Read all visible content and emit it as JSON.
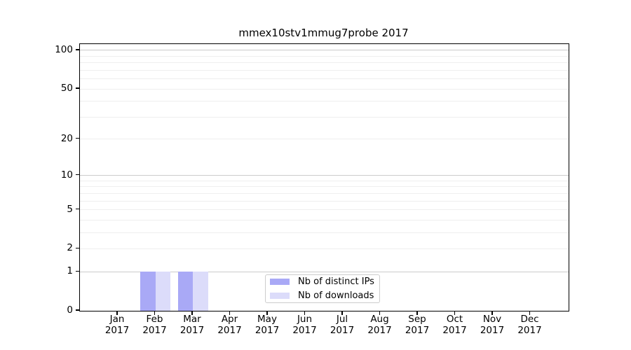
{
  "figure": {
    "background": "#ffffff"
  },
  "colors": {
    "bar_distinct_ips": "#a9a9f6",
    "bar_downloads": "#dcdcfa",
    "grid_major": "#cbcbcb",
    "grid_minor": "#efefef",
    "spine": "#000000",
    "legend_border": "#cccccc",
    "text": "#000000"
  },
  "chart_data": {
    "type": "bar",
    "title": "mmex10stv1mmug7probe 2017",
    "xlabel": "",
    "ylabel": "",
    "categories": [
      "Jan 2017",
      "Feb 2017",
      "Mar 2017",
      "Apr 2017",
      "May 2017",
      "Jun 2017",
      "Jul 2017",
      "Aug 2017",
      "Sep 2017",
      "Oct 2017",
      "Nov 2017",
      "Dec 2017"
    ],
    "x_tick_month": [
      "Jan",
      "Feb",
      "Mar",
      "Apr",
      "May",
      "Jun",
      "Jul",
      "Aug",
      "Sep",
      "Oct",
      "Nov",
      "Dec"
    ],
    "x_tick_year": [
      "2017",
      "2017",
      "2017",
      "2017",
      "2017",
      "2017",
      "2017",
      "2017",
      "2017",
      "2017",
      "2017",
      "2017"
    ],
    "series": [
      {
        "name": "Nb of distinct IPs",
        "color": "#a9a9f6",
        "values": [
          0,
          1,
          1,
          0,
          0,
          0,
          0,
          0,
          0,
          0,
          0,
          0
        ]
      },
      {
        "name": "Nb of downloads",
        "color": "#dcdcfa",
        "values": [
          0,
          1,
          1,
          0,
          0,
          0,
          0,
          0,
          0,
          0,
          0,
          0
        ]
      }
    ],
    "yscale": "log1p",
    "ylim": [
      0,
      112
    ],
    "y_tick_labels": [
      "100",
      "50",
      "20",
      "10",
      "5",
      "2",
      "1",
      "0"
    ],
    "y_tick_values": [
      100,
      50,
      20,
      10,
      5,
      2,
      1,
      0
    ],
    "y_major_grid_values": [
      1,
      10,
      100
    ],
    "y_minor_grid_values": [
      2,
      3,
      4,
      5,
      6,
      7,
      8,
      9,
      20,
      30,
      40,
      50,
      60,
      70,
      80,
      90
    ],
    "grid": true,
    "legend_position": "lower center"
  }
}
